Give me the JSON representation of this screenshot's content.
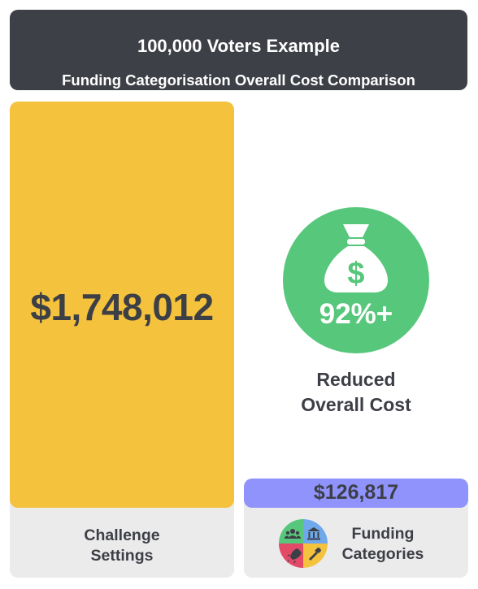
{
  "header": {
    "title": "100,000 Voters Example",
    "subtitle": "Funding Categorisation Overall Cost Comparison"
  },
  "challenge": {
    "value": "$1,748,012",
    "label_line1": "Challenge",
    "label_line2": "Settings"
  },
  "funding": {
    "value": "$126,817",
    "label_line1": "Funding",
    "label_line2": "Categories"
  },
  "savings": {
    "percent": "92%+",
    "label_line1": "Reduced",
    "label_line2": "Overall Cost"
  },
  "colors": {
    "header_bg": "#3e4047",
    "challenge_bar": "#f4c23d",
    "funding_bar": "#8f93fb",
    "savings_circle": "#57c77c",
    "card_bg": "#ebebec",
    "quadrant_green": "#57c77c",
    "quadrant_blue": "#6fa9ec",
    "quadrant_red": "#e24a68",
    "quadrant_yellow": "#f4c23d"
  },
  "icons": {
    "savings": "money-bag-icon",
    "funding": [
      "people-icon",
      "bank-icon",
      "rocket-icon",
      "wrench-icon"
    ]
  }
}
